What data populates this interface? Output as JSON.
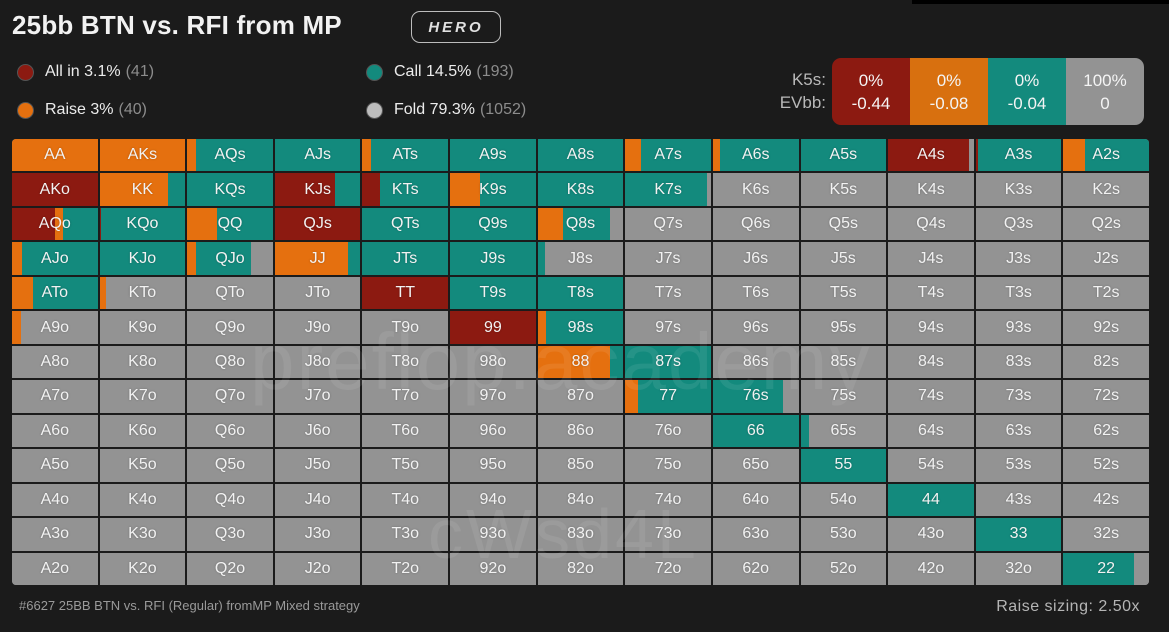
{
  "header": {
    "title": "25bb BTN vs. RFI from MP",
    "badge": "HERO"
  },
  "legend": [
    {
      "id": "allin",
      "label": "All in 3.1%",
      "count": "(41)",
      "color": "#8c1a11"
    },
    {
      "id": "raise",
      "label": "Raise 3%",
      "count": "(40)",
      "color": "#e5700f"
    },
    {
      "id": "call",
      "label": "Call 14.5%",
      "count": "(193)",
      "color": "#138a7d"
    },
    {
      "id": "fold",
      "label": "Fold 79.3%",
      "count": "(1052)",
      "color": "#bdbdbd"
    }
  ],
  "hand_detail": {
    "hand_label": "K5s:",
    "ev_label": "EVbb:",
    "cells": [
      {
        "freq": "0%",
        "ev": "-0.44",
        "color": "#8c1a11"
      },
      {
        "freq": "0%",
        "ev": "-0.08",
        "color": "#d8700f"
      },
      {
        "freq": "0%",
        "ev": "-0.04",
        "color": "#138a7d"
      },
      {
        "freq": "100%",
        "ev": "0",
        "color": "#939393"
      }
    ]
  },
  "colors": {
    "allin": "#8c1a11",
    "raise": "#e5700f",
    "call": "#138a7d",
    "fold": "#939393"
  },
  "grid": [
    [
      "AA",
      "AKs",
      "AQs",
      "AJs",
      "ATs",
      "A9s",
      "A8s",
      "A7s",
      "A6s",
      "A5s",
      "A4s",
      "A3s",
      "A2s"
    ],
    [
      "AKo",
      "KK",
      "KQs",
      "KJs",
      "KTs",
      "K9s",
      "K8s",
      "K7s",
      "K6s",
      "K5s",
      "K4s",
      "K3s",
      "K2s"
    ],
    [
      "AQo",
      "KQo",
      "QQ",
      "QJs",
      "QTs",
      "Q9s",
      "Q8s",
      "Q7s",
      "Q6s",
      "Q5s",
      "Q4s",
      "Q3s",
      "Q2s"
    ],
    [
      "AJo",
      "KJo",
      "QJo",
      "JJ",
      "JTs",
      "J9s",
      "J8s",
      "J7s",
      "J6s",
      "J5s",
      "J4s",
      "J3s",
      "J2s"
    ],
    [
      "ATo",
      "KTo",
      "QTo",
      "JTo",
      "TT",
      "T9s",
      "T8s",
      "T7s",
      "T6s",
      "T5s",
      "T4s",
      "T3s",
      "T2s"
    ],
    [
      "A9o",
      "K9o",
      "Q9o",
      "J9o",
      "T9o",
      "99",
      "98s",
      "97s",
      "96s",
      "95s",
      "94s",
      "93s",
      "92s"
    ],
    [
      "A8o",
      "K8o",
      "Q8o",
      "J8o",
      "T8o",
      "98o",
      "88",
      "87s",
      "86s",
      "85s",
      "84s",
      "83s",
      "82s"
    ],
    [
      "A7o",
      "K7o",
      "Q7o",
      "J7o",
      "T7o",
      "97o",
      "87o",
      "77",
      "76s",
      "75s",
      "74s",
      "73s",
      "72s"
    ],
    [
      "A6o",
      "K6o",
      "Q6o",
      "J6o",
      "T6o",
      "96o",
      "86o",
      "76o",
      "66",
      "65s",
      "64s",
      "63s",
      "62s"
    ],
    [
      "A5o",
      "K5o",
      "Q5o",
      "J5o",
      "T5o",
      "95o",
      "85o",
      "75o",
      "65o",
      "55",
      "54s",
      "53s",
      "52s"
    ],
    [
      "A4o",
      "K4o",
      "Q4o",
      "J4o",
      "T4o",
      "94o",
      "84o",
      "74o",
      "64o",
      "54o",
      "44",
      "43s",
      "42s"
    ],
    [
      "A3o",
      "K3o",
      "Q3o",
      "J3o",
      "T3o",
      "93o",
      "83o",
      "73o",
      "63o",
      "53o",
      "43o",
      "33",
      "32s"
    ],
    [
      "A2o",
      "K2o",
      "Q2o",
      "J2o",
      "T2o",
      "92o",
      "82o",
      "72o",
      "62o",
      "52o",
      "42o",
      "32o",
      "22"
    ]
  ],
  "strategy": {
    "AA": [
      0,
      1,
      0,
      0
    ],
    "AKs": [
      0,
      1,
      0,
      0
    ],
    "AQs": [
      0,
      0.1,
      0.9,
      0
    ],
    "AJs": [
      0,
      0,
      1,
      0
    ],
    "ATs": [
      0,
      0.1,
      0.9,
      0
    ],
    "A9s": [
      0,
      0,
      1,
      0
    ],
    "A8s": [
      0,
      0,
      1,
      0
    ],
    "A7s": [
      0,
      0.18,
      0.82,
      0
    ],
    "A6s": [
      0,
      0.08,
      0.92,
      0
    ],
    "A5s": [
      0,
      0,
      1,
      0
    ],
    "A4s": [
      0.95,
      0,
      0,
      0.05
    ],
    "A3s": [
      0.03,
      0,
      0.97,
      0
    ],
    "A2s": [
      0,
      0.25,
      0.75,
      0
    ],
    "AKo": [
      1,
      0,
      0,
      0
    ],
    "KK": [
      0,
      0.8,
      0.2,
      0
    ],
    "KQs": [
      0,
      0,
      1,
      0
    ],
    "KJs": [
      0.7,
      0,
      0.3,
      0
    ],
    "KTs": [
      0.2,
      0,
      0.8,
      0
    ],
    "K9s": [
      0,
      0.35,
      0.65,
      0
    ],
    "K8s": [
      0,
      0,
      1,
      0
    ],
    "K7s": [
      0,
      0,
      0.95,
      0.05
    ],
    "AQo": [
      0.5,
      0.1,
      0.4,
      0
    ],
    "KQo": [
      0.02,
      0,
      0.98,
      0
    ],
    "QQ": [
      0,
      0.35,
      0.65,
      0
    ],
    "QJs": [
      1,
      0,
      0,
      0
    ],
    "QTs": [
      0,
      0,
      1,
      0
    ],
    "Q9s": [
      0,
      0,
      1,
      0
    ],
    "Q8s": [
      0,
      0.3,
      0.55,
      0.15
    ],
    "AJo": [
      0,
      0.12,
      0.88,
      0
    ],
    "KJo": [
      0,
      0,
      1,
      0
    ],
    "QJo": [
      0,
      0.1,
      0.65,
      0.25
    ],
    "JJ": [
      0,
      0.85,
      0.15,
      0
    ],
    "JTs": [
      0,
      0,
      1,
      0
    ],
    "J9s": [
      0,
      0,
      1,
      0
    ],
    "J8s": [
      0,
      0,
      0.08,
      0.92
    ],
    "ATo": [
      0,
      0.25,
      0.75,
      0
    ],
    "KTo": [
      0,
      0.08,
      0,
      0.92
    ],
    "TT": [
      1,
      0,
      0,
      0
    ],
    "T9s": [
      0,
      0,
      1,
      0
    ],
    "T8s": [
      0,
      0,
      1,
      0
    ],
    "A9o": [
      0,
      0.1,
      0,
      0.9
    ],
    "99": [
      1,
      0,
      0,
      0
    ],
    "98s": [
      0,
      0.1,
      0.9,
      0
    ],
    "88": [
      0,
      0.85,
      0.15,
      0
    ],
    "87s": [
      0,
      0,
      1,
      0
    ],
    "77": [
      0,
      0.15,
      0.85,
      0
    ],
    "76s": [
      0,
      0,
      0.82,
      0.18
    ],
    "66": [
      0,
      0,
      1,
      0
    ],
    "65s": [
      0,
      0,
      0.1,
      0.9
    ],
    "55": [
      0,
      0,
      1,
      0
    ],
    "44": [
      0,
      0,
      1,
      0
    ],
    "33": [
      0,
      0,
      1,
      0
    ],
    "22": [
      0,
      0,
      0.82,
      0.18
    ]
  },
  "watermark": {
    "line1": "preflop.academy",
    "line2": "cWsd4L"
  },
  "footer": {
    "left": "#6627 25BB BTN vs. RFI (Regular) fromMP Mixed strategy",
    "right": "Raise sizing: 2.50x"
  }
}
